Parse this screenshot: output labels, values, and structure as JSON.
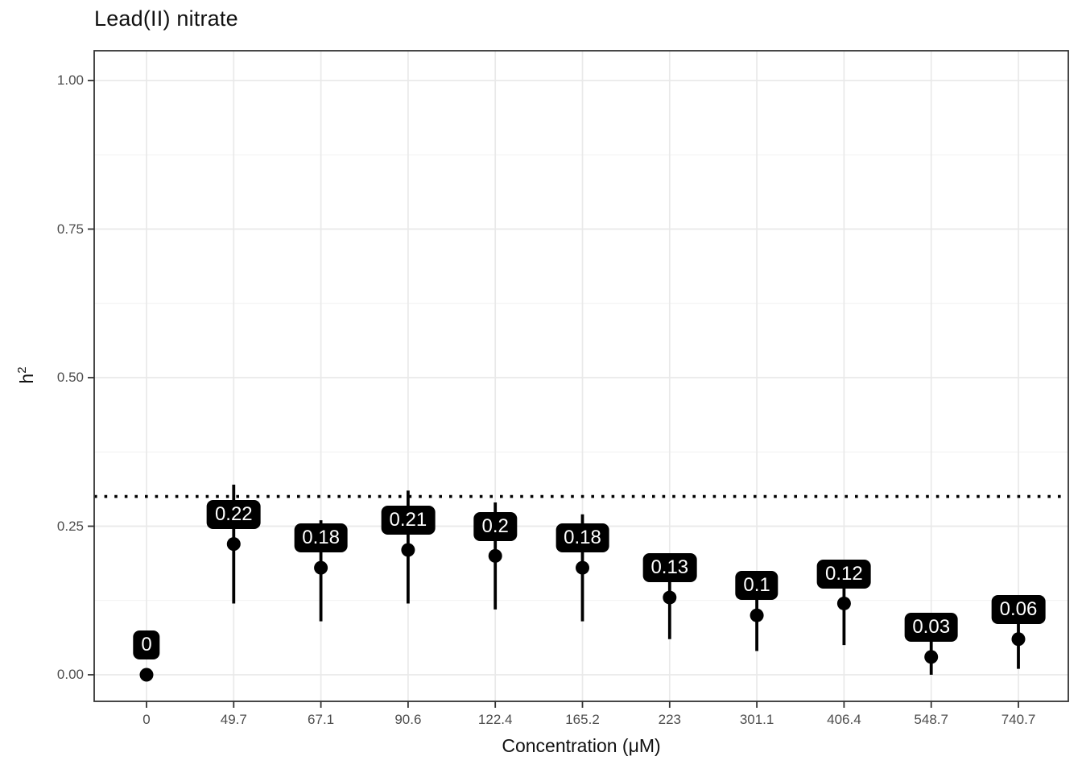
{
  "title": "Lead(II) nitrate",
  "axes": {
    "x_label": "Concentration (μM)",
    "y_label_base": "h",
    "y_label_sup": "2"
  },
  "chart_data": {
    "type": "scatter",
    "title": "Lead(II) nitrate",
    "xlabel": "Concentration (μM)",
    "ylabel": "h^2",
    "categories": [
      "0",
      "49.7",
      "67.1",
      "90.6",
      "122.4",
      "165.2",
      "223",
      "301.1",
      "406.4",
      "548.7",
      "740.7"
    ],
    "values": [
      0,
      0.22,
      0.18,
      0.21,
      0.2,
      0.18,
      0.13,
      0.1,
      0.12,
      0.03,
      0.06
    ],
    "point_labels": [
      "0",
      "0.22",
      "0.18",
      "0.21",
      "0.2",
      "0.18",
      "0.13",
      "0.1",
      "0.12",
      "0.03",
      "0.06"
    ],
    "error_low": [
      0,
      0.12,
      0.09,
      0.12,
      0.11,
      0.09,
      0.06,
      0.04,
      0.05,
      0.0,
      0.01
    ],
    "error_high": [
      0,
      0.32,
      0.26,
      0.31,
      0.29,
      0.27,
      0.19,
      0.16,
      0.18,
      0.06,
      0.1
    ],
    "reference_line": 0.3,
    "reference_line_style": "dotted",
    "y_ticks": [
      "0.00",
      "0.25",
      "0.50",
      "0.75",
      "1.00"
    ],
    "y_tick_values": [
      0,
      0.25,
      0.5,
      0.75,
      1.0
    ],
    "ylim": [
      0,
      1
    ],
    "grid": true,
    "legend": "none",
    "colors": {
      "point": "#000000",
      "error_bar": "#000000",
      "label_bg": "#000000",
      "label_text": "#ffffff",
      "grid_major": "#e9e9e9",
      "grid_minor": "#f1f1f1",
      "panel_border": "#333333",
      "axis_text": "#4d4d4d",
      "reference_line": "#000000"
    }
  }
}
